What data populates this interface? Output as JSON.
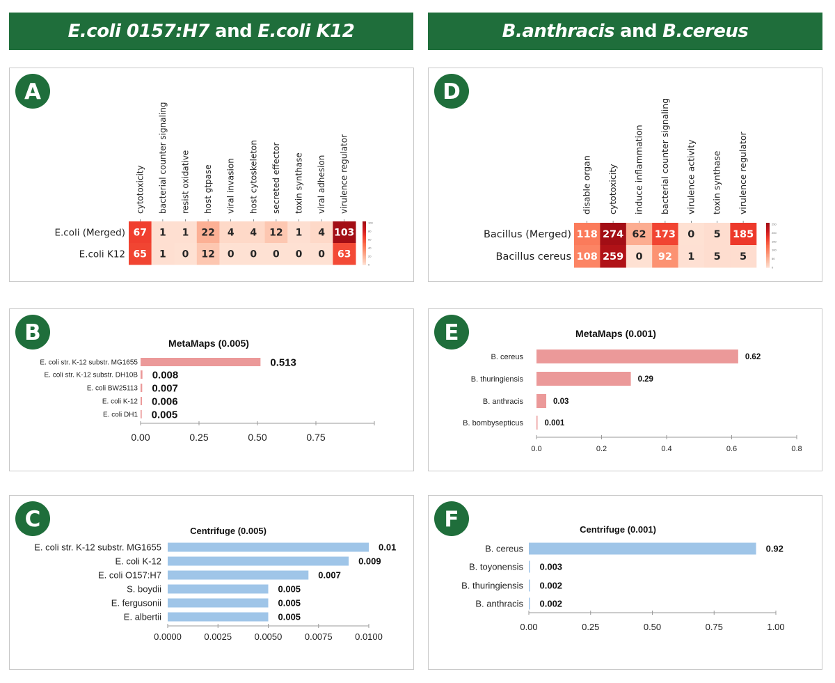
{
  "headers": [
    {
      "part1": "E.coli 0157:H7",
      "join": "and",
      "part2": "E.coli K12"
    },
    {
      "part1": "B.anthracis",
      "join": "and",
      "part2": "B.cereus"
    }
  ],
  "colors": {
    "header_green": "#1f6e3b",
    "metamaps_bar": "#eb9999",
    "centrifuge_bar": "#9fc5e8"
  },
  "chart_data": [
    {
      "id": "A",
      "panel_label": "A",
      "type": "heatmap",
      "colormap": "Reds",
      "columns": [
        "cytotoxicity",
        "bacterial counter signaling",
        "resist oxidative",
        "host gtpase",
        "viral invasion",
        "host cytoskeleton",
        "secreted effector",
        "toxin synthase",
        "viral adhesion",
        "virulence regulator"
      ],
      "rows": [
        "E.coli (Merged)",
        "E.coli K12"
      ],
      "values": [
        [
          67,
          1,
          1,
          22,
          4,
          4,
          12,
          1,
          4,
          103
        ],
        [
          65,
          1,
          0,
          12,
          0,
          0,
          0,
          0,
          0,
          63
        ]
      ],
      "colorbar_ticks": [
        "0",
        "20",
        "40",
        "60",
        "80",
        "100"
      ]
    },
    {
      "id": "B",
      "panel_label": "B",
      "type": "bar",
      "orientation": "horizontal",
      "title": "MetaMaps (0.005)",
      "categories": [
        "E. coli str. K-12 substr. MG1655",
        "E. coli str. K-12 substr. DH10B",
        "E. coli BW25113",
        "E. coli K-12",
        "E. coli DH1"
      ],
      "values": [
        0.513,
        0.008,
        0.007,
        0.006,
        0.005
      ],
      "value_labels": [
        "0.513",
        "0.008",
        "0.007",
        "0.006",
        "0.005"
      ],
      "xlim": [
        0,
        1
      ],
      "xticks": [
        0,
        0.25,
        0.5,
        0.75,
        1
      ],
      "xtick_labels": [
        "0.00",
        "0.25",
        "0.50",
        "0.75",
        ""
      ],
      "grid": false
    },
    {
      "id": "C",
      "panel_label": "C",
      "type": "bar",
      "orientation": "horizontal",
      "title": "Centrifuge (0.005)",
      "categories": [
        "E. coli str. K-12 substr. MG1655",
        "E. coli K-12",
        "E. coli O157:H7",
        "S. boydii",
        "E. fergusonii",
        "E. albertii"
      ],
      "values": [
        0.01,
        0.009,
        0.007,
        0.005,
        0.005,
        0.005
      ],
      "value_labels": [
        "0.01",
        "0.009",
        "0.007",
        "0.005",
        "0.005",
        "0.005"
      ],
      "xlim": [
        0,
        0.01
      ],
      "xticks": [
        0,
        0.0025,
        0.005,
        0.0075,
        0.01
      ],
      "xtick_labels": [
        "0.0000",
        "0.0025",
        "0.0050",
        "0.0075",
        "0.0100"
      ],
      "grid": false
    },
    {
      "id": "D",
      "panel_label": "D",
      "type": "heatmap",
      "colormap": "Reds",
      "columns": [
        "disable organ",
        "cytotoxicity",
        "induce inflammation",
        "bacterial counter signaling",
        "virulence activity",
        "toxin synthase",
        "virulence regulator"
      ],
      "rows": [
        "Bacillus (Merged)",
        "Bacillus cereus"
      ],
      "values": [
        [
          118,
          274,
          62,
          173,
          0,
          5,
          185
        ],
        [
          108,
          259,
          0,
          92,
          1,
          5,
          5
        ]
      ],
      "colorbar_ticks": [
        "0",
        "50",
        "100",
        "150",
        "200",
        "250"
      ]
    },
    {
      "id": "E",
      "panel_label": "E",
      "type": "bar",
      "orientation": "horizontal",
      "title": "MetaMaps  (0.001)",
      "categories": [
        "B. cereus",
        "B. thuringiensis",
        "B. anthracis",
        "B. bombysepticus"
      ],
      "values": [
        0.62,
        0.29,
        0.03,
        0.001
      ],
      "value_labels": [
        "0.62",
        "0.29",
        "0.03",
        "0.001"
      ],
      "xlim": [
        0,
        0.8
      ],
      "xticks": [
        0,
        0.2,
        0.4,
        0.6,
        0.8
      ],
      "xtick_labels": [
        "0.0",
        "0.2",
        "0.4",
        "0.6",
        "0.8"
      ],
      "grid": false
    },
    {
      "id": "F",
      "panel_label": "F",
      "type": "bar",
      "orientation": "horizontal",
      "title": "Centrifuge (0.001)",
      "categories": [
        "B. cereus",
        "B. toyonensis",
        "B. thuringiensis",
        "B. anthracis"
      ],
      "values": [
        0.92,
        0.003,
        0.002,
        0.002
      ],
      "value_labels": [
        "0.92",
        "0.003",
        "0.002",
        "0.002"
      ],
      "xlim": [
        0,
        1
      ],
      "xticks": [
        0,
        0.25,
        0.5,
        0.75,
        1
      ],
      "xtick_labels": [
        "0.00",
        "0.25",
        "0.50",
        "0.75",
        "1.00"
      ],
      "grid": false
    }
  ]
}
